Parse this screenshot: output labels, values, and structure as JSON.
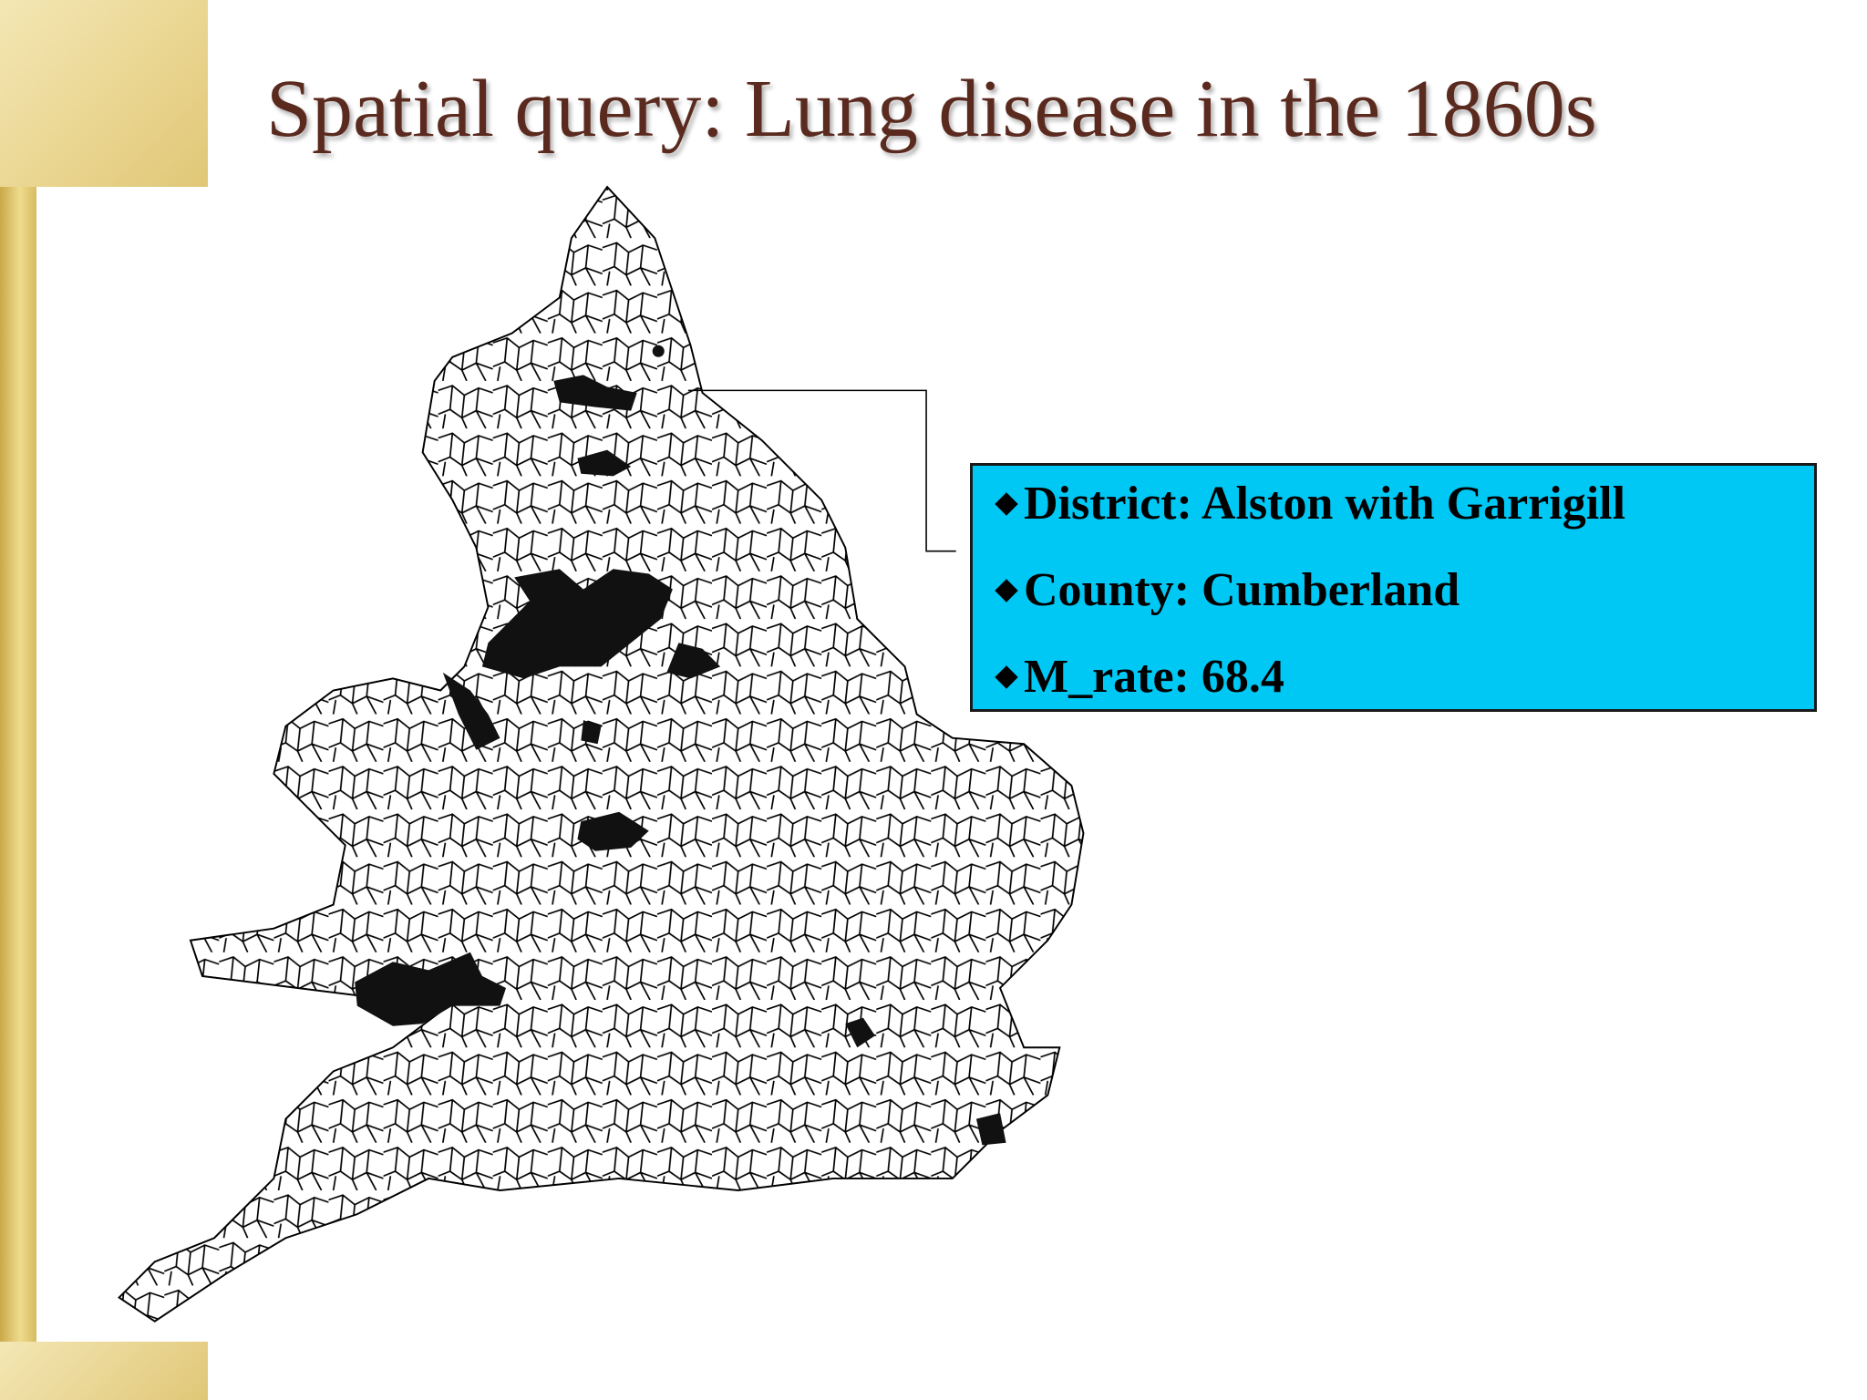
{
  "title": "Spatial query: Lung disease in the 1860s",
  "callout": {
    "lines": [
      "District: Alston with Garrigill",
      "County: Cumberland",
      "M_rate: 68.4"
    ]
  }
}
